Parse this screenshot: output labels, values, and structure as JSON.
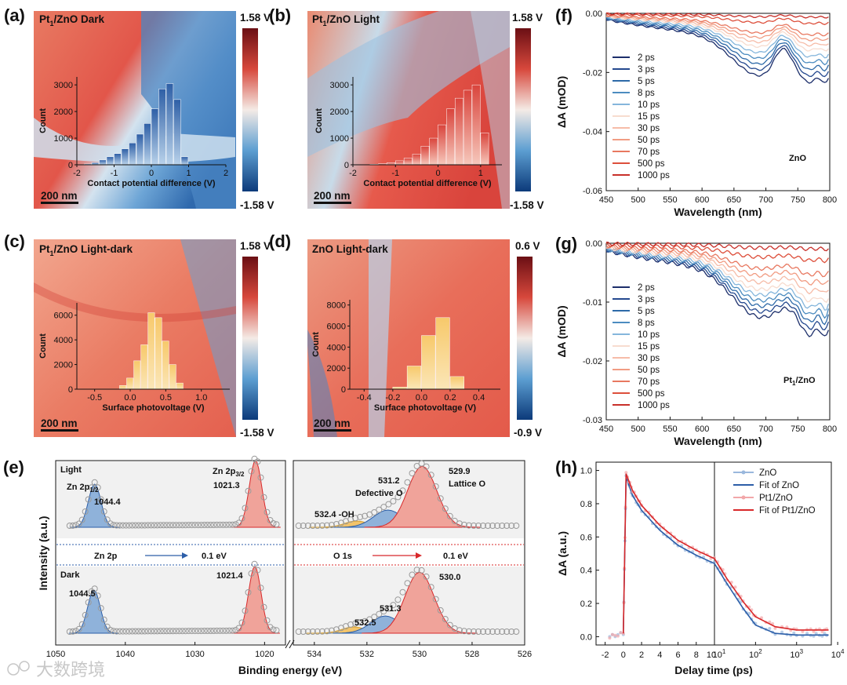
{
  "panels": {
    "a": {
      "label": "(a)",
      "title": "Pt1/ZnO Dark",
      "title_main": "Pt",
      "title_sub": "1",
      "title_rest": "/ZnO Dark",
      "scalebar": "200 nm",
      "cbar_max": "1.58 V",
      "cbar_min": "-1.58 V"
    },
    "b": {
      "label": "(b)",
      "title": "Pt1/ZnO Light",
      "title_main": "Pt",
      "title_sub": "1",
      "title_rest": "/ZnO Light",
      "scalebar": "200 nm",
      "cbar_max": "1.58 V",
      "cbar_min": "-1.58 V"
    },
    "c": {
      "label": "(c)",
      "title": "Pt1/ZnO Light-dark",
      "title_main": "Pt",
      "title_sub": "1",
      "title_rest": "/ZnO Light-dark",
      "scalebar": "200 nm",
      "cbar_max": "1.58 V",
      "cbar_min": "-1.58 V"
    },
    "d": {
      "label": "(d)",
      "title": "ZnO Light-dark",
      "scalebar": "200 nm",
      "cbar_max": "0.6 V",
      "cbar_min": "-0.9 V"
    },
    "e": {
      "label": "(e)"
    },
    "f": {
      "label": "(f)"
    },
    "g": {
      "label": "(g)"
    },
    "h": {
      "label": "(h)"
    }
  },
  "watermark": "大数跨境",
  "chart_data": [
    {
      "id": "a-hist",
      "type": "bar",
      "xlabel": "Contact potential difference (V)",
      "ylabel": "Count",
      "xlim": [
        -2,
        2
      ],
      "ylim": [
        0,
        3300
      ],
      "xticks": [
        "-2",
        "-1",
        "0",
        "1",
        "2"
      ],
      "yticks": [
        "0",
        "1000",
        "2000",
        "3000"
      ],
      "bins": [
        -1.7,
        -1.5,
        -1.3,
        -1.1,
        -0.9,
        -0.7,
        -0.5,
        -0.3,
        -0.1,
        0.1,
        0.3,
        0.5,
        0.7,
        0.9
      ],
      "values": [
        30,
        80,
        180,
        300,
        420,
        600,
        820,
        1150,
        1550,
        2100,
        2850,
        3050,
        2450,
        300
      ],
      "color": "#3a6fb0"
    },
    {
      "id": "b-hist",
      "type": "bar",
      "xlabel": "Contact potential difference (V)",
      "ylabel": "Count",
      "xlim": [
        -2,
        1.5
      ],
      "ylim": [
        0,
        3300
      ],
      "xticks": [
        "-2",
        "-1",
        "0",
        "1"
      ],
      "yticks": [
        "0",
        "1000",
        "2000",
        "3000"
      ],
      "bins": [
        -1.5,
        -1.3,
        -1.1,
        -0.9,
        -0.7,
        -0.5,
        -0.3,
        -0.1,
        0.1,
        0.3,
        0.5,
        0.7,
        0.9,
        1.1
      ],
      "values": [
        20,
        40,
        80,
        150,
        250,
        400,
        700,
        1000,
        1500,
        2100,
        2500,
        2800,
        3000,
        1200
      ],
      "color": "#d9534a"
    },
    {
      "id": "c-hist",
      "type": "bar",
      "xlabel": "Surface photovoltage  (V)",
      "ylabel": "Count",
      "xlim": [
        -0.75,
        1.4
      ],
      "ylim": [
        0,
        7000
      ],
      "xticks": [
        "-0.5",
        "0.0",
        "0.5",
        "1.0"
      ],
      "yticks": [
        "0",
        "2000",
        "4000",
        "6000"
      ],
      "bins": [
        -0.1,
        0.0,
        0.1,
        0.2,
        0.3,
        0.4,
        0.5,
        0.6,
        0.7
      ],
      "values": [
        300,
        900,
        2300,
        3600,
        6200,
        5800,
        3900,
        2000,
        500
      ],
      "color": "#f5c86a"
    },
    {
      "id": "d-hist",
      "type": "bar",
      "xlabel": "Surface photovoltage (V)",
      "ylabel": "Count",
      "xlim": [
        -0.5,
        0.55
      ],
      "ylim": [
        0,
        8500
      ],
      "xticks": [
        "-0.4",
        "-0.2",
        "0.0",
        "0.2",
        "0.4"
      ],
      "yticks": [
        "0",
        "2000",
        "4000",
        "6000",
        "8000"
      ],
      "bins": [
        -0.15,
        -0.05,
        0.05,
        0.15,
        0.25
      ],
      "values": [
        200,
        2200,
        5100,
        6800,
        1200
      ],
      "color": "#f5c86a"
    },
    {
      "id": "f",
      "type": "line",
      "xlabel": "Wavelength (nm)",
      "ylabel": "ΔA (mOD)",
      "xlim": [
        450,
        800
      ],
      "ylim": [
        -0.06,
        0.0
      ],
      "xticks": [
        "450",
        "500",
        "550",
        "600",
        "650",
        "700",
        "750",
        "800"
      ],
      "yticks": [
        "0.00",
        "-0.02",
        "-0.04",
        "-0.06"
      ],
      "annotation": "ZnO",
      "series_names": [
        "2 ps",
        "3 ps",
        "5 ps",
        "8 ps",
        "10 ps",
        "15 ps",
        "30 ps",
        "50 ps",
        "70 ps",
        "500 ps",
        "1000 ps"
      ],
      "peak_amplitudes": [
        -0.027,
        -0.0245,
        -0.022,
        -0.0195,
        -0.017,
        -0.0145,
        -0.0125,
        -0.0105,
        -0.0085,
        -0.004,
        -0.0015
      ]
    },
    {
      "id": "g",
      "type": "line",
      "xlabel": "Wavelength (nm)",
      "ylabel": "ΔA (mOD)",
      "xlim": [
        450,
        800
      ],
      "ylim": [
        -0.03,
        0.0
      ],
      "xticks": [
        "450",
        "500",
        "550",
        "600",
        "650",
        "700",
        "750",
        "800"
      ],
      "yticks": [
        "0.00",
        "-0.01",
        "-0.02",
        "-0.03"
      ],
      "annotation": "Pt1/ZnO",
      "series_names": [
        "2 ps",
        "3 ps",
        "5 ps",
        "8 ps",
        "10 ps",
        "15 ps",
        "30 ps",
        "50 ps",
        "70 ps",
        "500 ps",
        "1000 ps"
      ],
      "peak_amplitudes": [
        -0.016,
        -0.0148,
        -0.0136,
        -0.0124,
        -0.0112,
        -0.01,
        -0.0085,
        -0.007,
        -0.0055,
        -0.003,
        -0.001
      ]
    },
    {
      "id": "h",
      "type": "line",
      "xlabel": "Delay time (ps)",
      "ylabel": "ΔA (a.u.)",
      "ylim": [
        -0.05,
        1.05
      ],
      "xticks_linear": [
        "-2",
        "0",
        "2",
        "4",
        "6",
        "8",
        "10"
      ],
      "xticks_log": [
        "10^1",
        "10^2",
        "10^3",
        "10^4"
      ],
      "yticks": [
        "0.0",
        "0.2",
        "0.4",
        "0.6",
        "0.8",
        "1.0"
      ],
      "legend": [
        "ZnO",
        "Fit of ZnO",
        "Pt1/ZnO",
        "Fit of Pt1/ZnO"
      ],
      "series": [
        {
          "name": "ZnO",
          "x": [
            -1.5,
            0,
            0.3,
            1,
            2,
            4,
            6,
            8,
            10,
            20,
            50,
            100,
            300,
            1000,
            3000,
            6000
          ],
          "y": [
            0.0,
            0.02,
            0.96,
            0.85,
            0.76,
            0.64,
            0.55,
            0.49,
            0.44,
            0.32,
            0.17,
            0.07,
            0.02,
            0.01,
            0.01,
            0.01
          ]
        },
        {
          "name": "Pt1/ZnO",
          "x": [
            -1.5,
            0,
            0.3,
            1,
            2,
            4,
            6,
            8,
            10,
            20,
            50,
            100,
            300,
            1000,
            3000,
            6000
          ],
          "y": [
            0.0,
            0.02,
            0.98,
            0.88,
            0.79,
            0.67,
            0.58,
            0.52,
            0.47,
            0.35,
            0.21,
            0.12,
            0.06,
            0.04,
            0.04,
            0.04
          ]
        }
      ]
    },
    {
      "id": "e-Zn2p",
      "type": "line",
      "xlabel": "Binding energy (eV)",
      "ylabel": "Intensity (a.u.)",
      "xlim": [
        1050,
        1017
      ],
      "xticks": [
        "1050",
        "1040",
        "1030",
        "1020"
      ],
      "light": {
        "label": "Light",
        "peaks": [
          {
            "name": "Zn 2p1/2",
            "pos": "1044.4"
          },
          {
            "name": "Zn 2p3/2",
            "pos": "1021.3"
          }
        ]
      },
      "dark": {
        "label": "Dark",
        "peaks": [
          {
            "pos": "1044.5"
          },
          {
            "pos": "1021.4"
          }
        ]
      },
      "shift": {
        "label": "Zn 2p",
        "value": "0.1 eV"
      }
    },
    {
      "id": "e-O1s",
      "type": "line",
      "xlim": [
        534.8,
        526
      ],
      "xticks": [
        "534",
        "532",
        "530",
        "528",
        "526"
      ],
      "light": {
        "peaks": [
          {
            "name": "-OH",
            "pos": "532.4"
          },
          {
            "name": "Defective O",
            "pos": "531.2"
          },
          {
            "name": "Lattice O",
            "pos": "529.9"
          }
        ]
      },
      "dark": {
        "peaks": [
          {
            "pos": "532.5"
          },
          {
            "pos": "531.3"
          },
          {
            "pos": "530.0"
          }
        ]
      },
      "shift": {
        "label": "O 1s",
        "value": "0.1 eV"
      }
    }
  ]
}
